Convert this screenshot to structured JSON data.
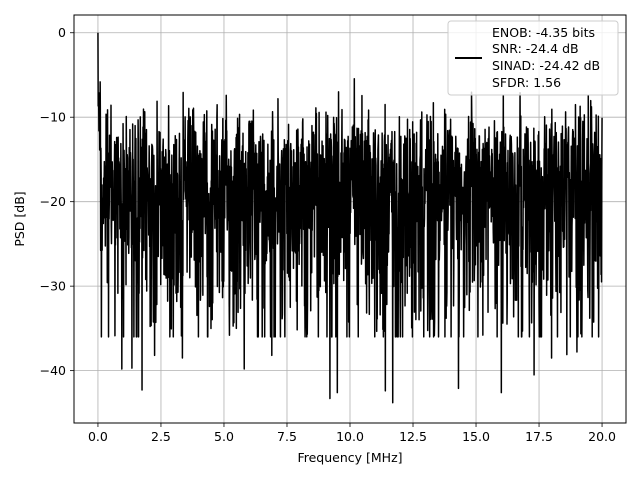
{
  "chart_data": {
    "type": "line",
    "xlabel": "Frequency [MHz]",
    "ylabel": "PSD [dB]",
    "xlim": [
      -0.95,
      20.95
    ],
    "ylim": [
      -46.2,
      2.1
    ],
    "x_ticks": [
      0.0,
      2.5,
      5.0,
      7.5,
      10.0,
      12.5,
      15.0,
      17.5,
      20.0
    ],
    "x_tick_labels": [
      "0.0",
      "2.5",
      "5.0",
      "7.5",
      "10.0",
      "12.5",
      "15.0",
      "17.5",
      "20.0"
    ],
    "y_ticks": [
      0,
      -10,
      -20,
      -30,
      -40
    ],
    "y_tick_labels": [
      "0",
      "−10",
      "−20",
      "−30",
      "−40"
    ],
    "grid": true,
    "legend_position": "top-right",
    "legend_lines": [
      "ENOB: -4.35 bits",
      "SNR: -24.4 dB",
      "SINAD: -24.42 dB",
      "SFDR: 1.56"
    ],
    "series": [
      {
        "color": "#000000",
        "x_range": [
          0.0,
          20.0
        ],
        "num_points": 2048,
        "start_value": 0.0,
        "noise_floor_range": [
          -28,
          -6
        ],
        "typical_peak": -6,
        "min_dips": [
          [
            1.75,
            -42.3
          ],
          [
            9.2,
            -43.3
          ],
          [
            9.5,
            -42.6
          ],
          [
            11.4,
            -42.4
          ],
          [
            11.7,
            -43.8
          ],
          [
            14.3,
            -42.1
          ],
          [
            16.0,
            -42.6
          ],
          [
            17.3,
            -40.5
          ],
          [
            5.8,
            -39.8
          ],
          [
            0.95,
            -39.8
          ],
          [
            1.35,
            -39.7
          ],
          [
            3.35,
            -38.5
          ],
          [
            6.9,
            -38.2
          ],
          [
            8.3,
            -35.7
          ],
          [
            18.0,
            -38.5
          ],
          [
            18.6,
            -38.1
          ],
          [
            19.0,
            -37.8
          ],
          [
            2.25,
            -38.2
          ]
        ]
      }
    ]
  }
}
